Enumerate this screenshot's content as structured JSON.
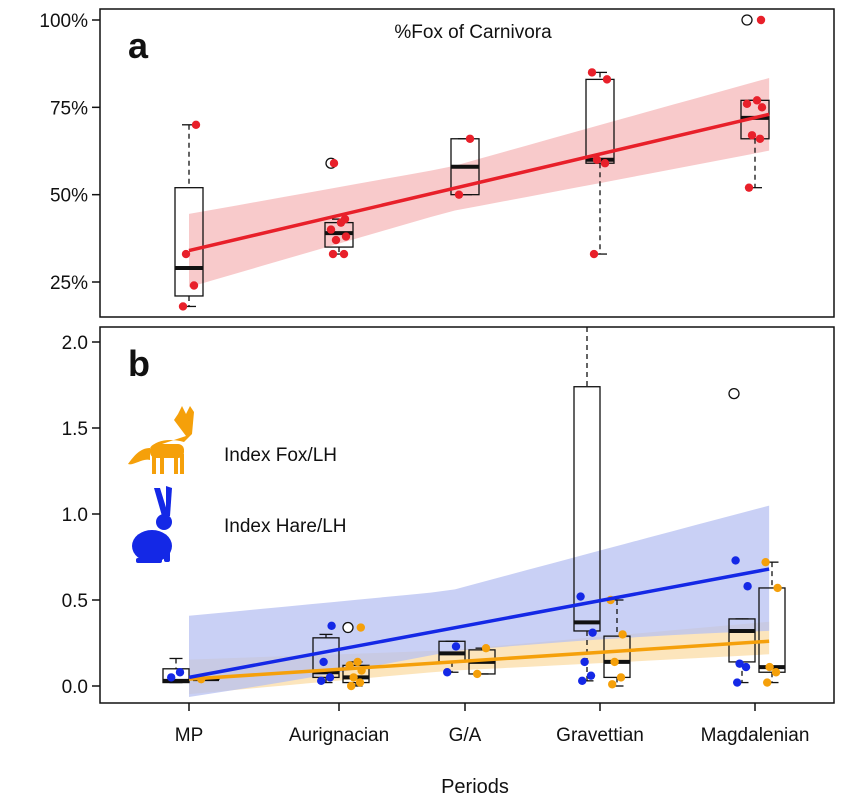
{
  "chart_data": [
    {
      "panel_label": "a",
      "type": "box",
      "title": "%Fox of Carnivora",
      "xlabel": "",
      "ylabel": "",
      "categories": [
        "MP",
        "Aurignacian",
        "G/A",
        "Gravettian",
        "Magdalenian"
      ],
      "ylim": [
        0.13,
        1.0
      ],
      "y_ticks": [
        0.25,
        0.5,
        0.75,
        1.0
      ],
      "y_tick_labels": [
        "25%",
        "50%",
        "75%",
        "100%"
      ],
      "grid": false,
      "colors": {
        "points": "#e8202a",
        "fit": "#e8202a",
        "band": "#f6b8ba"
      },
      "boxes": [
        {
          "category": "MP",
          "whisker_low": 0.18,
          "q1": 0.21,
          "median": 0.29,
          "q3": 0.52,
          "whisker_high": 0.7,
          "outliers": []
        },
        {
          "category": "Aurignacian",
          "whisker_low": 0.33,
          "q1": 0.35,
          "median": 0.39,
          "q3": 0.42,
          "whisker_high": 0.43,
          "outliers": [
            0.59
          ]
        },
        {
          "category": "G/A",
          "whisker_low": 0.5,
          "q1": 0.5,
          "median": 0.58,
          "q3": 0.66,
          "whisker_high": 0.66,
          "outliers": []
        },
        {
          "category": "Gravettian",
          "whisker_low": 0.33,
          "q1": 0.59,
          "median": 0.6,
          "q3": 0.83,
          "whisker_high": 0.85,
          "outliers": []
        },
        {
          "category": "Magdalenian",
          "whisker_low": 0.52,
          "q1": 0.66,
          "median": 0.72,
          "q3": 0.77,
          "whisker_high": 0.77,
          "outliers": [
            1.0
          ]
        }
      ],
      "points": [
        {
          "category": "MP",
          "values": [
            0.18,
            0.24,
            0.33,
            0.7
          ]
        },
        {
          "category": "Aurignacian",
          "values": [
            0.33,
            0.33,
            0.37,
            0.38,
            0.4,
            0.42,
            0.43,
            0.59
          ]
        },
        {
          "category": "G/A",
          "values": [
            0.5,
            0.66
          ]
        },
        {
          "category": "Gravettian",
          "values": [
            0.33,
            0.59,
            0.6,
            0.83,
            0.85
          ]
        },
        {
          "category": "Magdalenian",
          "values": [
            0.52,
            0.66,
            0.67,
            0.75,
            0.76,
            0.77,
            1.0
          ]
        }
      ],
      "fit": {
        "start": 0.34,
        "end": 0.73,
        "band_low": [
          0.22,
          0.62
        ],
        "band_high": [
          0.46,
          0.84
        ]
      }
    },
    {
      "panel_label": "b",
      "type": "box",
      "title": "",
      "xlabel": "Periods",
      "ylabel": "",
      "categories": [
        "MP",
        "Aurignacian",
        "G/A",
        "Gravettian",
        "Magdalenian"
      ],
      "ylim": [
        -0.08,
        2.1
      ],
      "y_ticks": [
        0.0,
        0.5,
        1.0,
        1.5,
        2.0
      ],
      "y_tick_labels": [
        "0.0",
        "0.5",
        "1.0",
        "1.5",
        "2.0"
      ],
      "grid": false,
      "series": [
        {
          "name": "Index Fox/LH",
          "color": "#f5a00a",
          "band_color": "#fbdca6",
          "icon": "fox-icon",
          "boxes": [
            {
              "category": "MP",
              "whisker_low": 0.04,
              "q1": 0.04,
              "median": 0.04,
              "q3": 0.05,
              "whisker_high": 0.05,
              "outliers": []
            },
            {
              "category": "Aurignacian",
              "whisker_low": 0.0,
              "q1": 0.02,
              "median": 0.05,
              "q3": 0.12,
              "whisker_high": 0.14,
              "outliers": [
                0.34
              ]
            },
            {
              "category": "G/A",
              "whisker_low": 0.07,
              "q1": 0.07,
              "median": 0.14,
              "q3": 0.21,
              "whisker_high": 0.22,
              "outliers": []
            },
            {
              "category": "Gravettian",
              "whisker_low": 0.0,
              "q1": 0.05,
              "median": 0.14,
              "q3": 0.29,
              "whisker_high": 0.5,
              "outliers": []
            },
            {
              "category": "Magdalenian",
              "whisker_low": 0.02,
              "q1": 0.08,
              "median": 0.11,
              "q3": 0.57,
              "whisker_high": 0.72,
              "outliers": []
            }
          ],
          "points": [
            {
              "category": "MP",
              "values": [
                0.04
              ]
            },
            {
              "category": "Aurignacian",
              "values": [
                0.0,
                0.02,
                0.05,
                0.09,
                0.12,
                0.14,
                0.34
              ]
            },
            {
              "category": "G/A",
              "values": [
                0.07,
                0.22
              ]
            },
            {
              "category": "Gravettian",
              "values": [
                0.01,
                0.05,
                0.14,
                0.3,
                0.5
              ]
            },
            {
              "category": "Magdalenian",
              "values": [
                0.02,
                0.08,
                0.11,
                0.57,
                0.72
              ]
            }
          ],
          "fit": {
            "start": 0.04,
            "end": 0.26,
            "band_low": [
              -0.06,
              0.18
            ],
            "band_high": [
              0.17,
              0.38
            ]
          }
        },
        {
          "name": "Index Hare/LH",
          "color": "#1428e6",
          "band_color": "#b7c0f2",
          "icon": "hare-icon",
          "boxes": [
            {
              "category": "MP",
              "whisker_low": 0.02,
              "q1": 0.02,
              "median": 0.03,
              "q3": 0.1,
              "whisker_high": 0.16,
              "outliers": []
            },
            {
              "category": "Aurignacian",
              "whisker_low": 0.02,
              "q1": 0.05,
              "median": 0.08,
              "q3": 0.28,
              "whisker_high": 0.3,
              "outliers": []
            },
            {
              "category": "G/A",
              "whisker_low": 0.08,
              "q1": 0.14,
              "median": 0.19,
              "q3": 0.26,
              "whisker_high": 0.26,
              "outliers": []
            },
            {
              "category": "Gravettian",
              "whisker_low": 0.03,
              "q1": 0.32,
              "median": 0.37,
              "q3": 1.74,
              "whisker_high": 2.1,
              "outliers": []
            },
            {
              "category": "Magdalenian",
              "whisker_low": 0.02,
              "q1": 0.14,
              "median": 0.32,
              "q3": 0.39,
              "whisker_high": 0.39,
              "outliers": [
                1.7
              ]
            }
          ],
          "points": [
            {
              "category": "MP",
              "values": [
                0.05,
                0.08
              ]
            },
            {
              "category": "Aurignacian",
              "values": [
                0.03,
                0.05,
                0.14,
                0.35
              ]
            },
            {
              "category": "G/A",
              "values": [
                0.08,
                0.23
              ]
            },
            {
              "category": "Gravettian",
              "values": [
                0.03,
                0.06,
                0.14,
                0.31,
                0.52
              ]
            },
            {
              "category": "Magdalenian",
              "values": [
                0.02,
                0.11,
                0.13,
                0.58,
                0.73,
                1.7
              ]
            }
          ],
          "fit": {
            "start": 0.05,
            "end": 0.68,
            "band_low": [
              -0.08,
              0.3
            ],
            "band_high": [
              0.46,
              1.07
            ]
          }
        }
      ]
    }
  ]
}
